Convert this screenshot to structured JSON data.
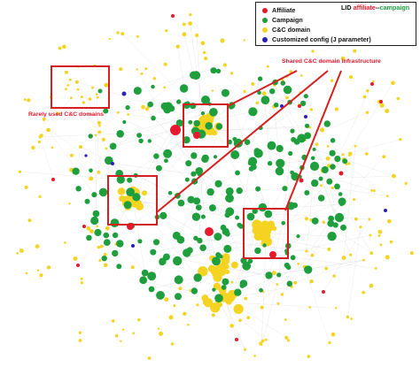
{
  "legend": {
    "items": [
      {
        "label": "Affiliate",
        "color": "#e8192c"
      },
      {
        "label": "Campaign",
        "color": "#1e9e3c"
      },
      {
        "label": "C&C domain",
        "color": "#f5d321"
      },
      {
        "label": "Customized config (J parameter)",
        "color": "#2b1fb8"
      }
    ]
  },
  "lid": {
    "prefix": "LID ",
    "affiliate": "affiliate",
    "separator": "--",
    "campaign": "campaign"
  },
  "annotations": {
    "rarely_used": "Rarely used C&C domains",
    "shared_infra": "Shared C&C domain infrastructure"
  },
  "colors": {
    "affiliate": "#e8192c",
    "campaign": "#1e9e3c",
    "cnc": "#f5d321",
    "config": "#2b1fb8",
    "highlight": "#d62020",
    "edge": "#c9c9d6"
  }
}
